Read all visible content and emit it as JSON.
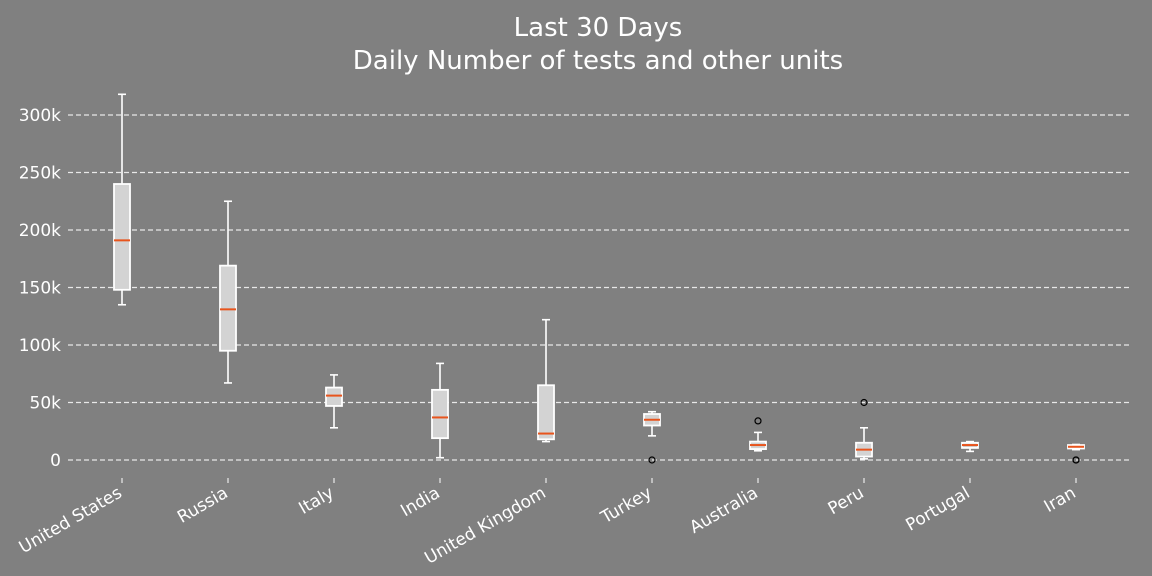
{
  "chart_data": {
    "type": "box",
    "title_line1": "Last 30 Days",
    "title_line2": "Daily Number of tests and other units",
    "xlabel": "",
    "ylabel": "",
    "ylim": [
      -15000,
      325000
    ],
    "yticks": [
      0,
      50000,
      100000,
      150000,
      200000,
      250000,
      300000
    ],
    "ytick_labels": [
      "0",
      "50k",
      "100k",
      "150k",
      "200k",
      "250k",
      "300k"
    ],
    "grid": "y-dashed",
    "colors": {
      "background": "#808080",
      "box_fill": "#d3d3d3",
      "box_edge": "#ffffff",
      "median": "#e8541c",
      "grid": "#e8e8e8",
      "text": "#ffffff",
      "flier": "#000000"
    },
    "categories": [
      "United States",
      "Russia",
      "Italy",
      "India",
      "United Kingdom",
      "Turkey",
      "Australia",
      "Peru",
      "Portugal",
      "Iran"
    ],
    "boxes": [
      {
        "category": "United States",
        "whislo": 135000,
        "q1": 148000,
        "med": 191000,
        "q3": 240000,
        "whishi": 318000,
        "fliers": []
      },
      {
        "category": "Russia",
        "whislo": 67000,
        "q1": 95000,
        "med": 131000,
        "q3": 169000,
        "whishi": 225000,
        "fliers": []
      },
      {
        "category": "Italy",
        "whislo": 28000,
        "q1": 47000,
        "med": 56000,
        "q3": 63000,
        "whishi": 74000,
        "fliers": []
      },
      {
        "category": "India",
        "whislo": 2000,
        "q1": 19000,
        "med": 37000,
        "q3": 61000,
        "whishi": 84000,
        "fliers": []
      },
      {
        "category": "United Kingdom",
        "whislo": 16000,
        "q1": 18000,
        "med": 23000,
        "q3": 65000,
        "whishi": 122000,
        "fliers": []
      },
      {
        "category": "Turkey",
        "whislo": 21000,
        "q1": 30000,
        "med": 35000,
        "q3": 40000,
        "whishi": 42000,
        "fliers": [
          0
        ]
      },
      {
        "category": "Australia",
        "whislo": 8000,
        "q1": 9500,
        "med": 13000,
        "q3": 16000,
        "whishi": 24000,
        "fliers": [
          34000
        ]
      },
      {
        "category": "Peru",
        "whislo": 1000,
        "q1": 3000,
        "med": 9000,
        "q3": 15000,
        "whishi": 28000,
        "fliers": [
          50000
        ]
      },
      {
        "category": "Portugal",
        "whislo": 7500,
        "q1": 10500,
        "med": 13000,
        "q3": 15000,
        "whishi": 16000,
        "fliers": []
      },
      {
        "category": "Iran",
        "whislo": 9000,
        "q1": 10000,
        "med": 11500,
        "q3": 13000,
        "whishi": 13500,
        "fliers": [
          0,
          0
        ]
      }
    ]
  }
}
